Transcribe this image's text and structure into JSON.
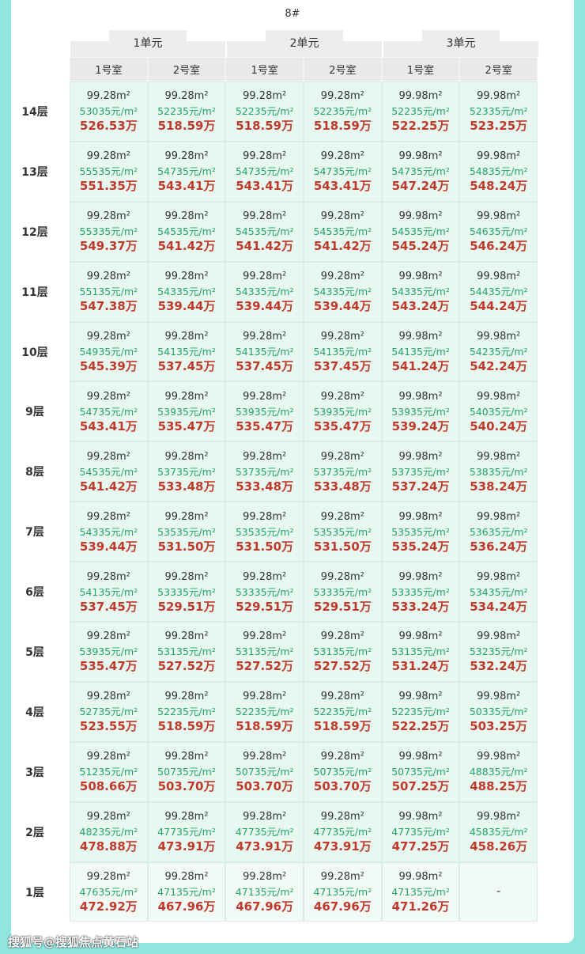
{
  "title": "8#",
  "units": [
    "1单元",
    "2单元",
    "3单元"
  ],
  "rooms": [
    "1号室",
    "2号室",
    "1号室",
    "2号室",
    "1号室",
    "2号室"
  ],
  "colors": {
    "background": "#8fe6df",
    "price": "#23a36a",
    "total": "#c0392b",
    "cell": "#e6f8f0"
  },
  "rows": [
    {
      "floor": "14层",
      "cells": [
        [
          "99.28m²",
          "53035元/m²",
          "526.53万"
        ],
        [
          "99.28m²",
          "52235元/m²",
          "518.59万"
        ],
        [
          "99.28m²",
          "52235元/m²",
          "518.59万"
        ],
        [
          "99.28m²",
          "52235元/m²",
          "518.59万"
        ],
        [
          "99.98m²",
          "52235元/m²",
          "522.25万"
        ],
        [
          "99.98m²",
          "52335元/m²",
          "523.25万"
        ]
      ]
    },
    {
      "floor": "13层",
      "cells": [
        [
          "99.28m²",
          "55535元/m²",
          "551.35万"
        ],
        [
          "99.28m²",
          "54735元/m²",
          "543.41万"
        ],
        [
          "99.28m²",
          "54735元/m²",
          "543.41万"
        ],
        [
          "99.28m²",
          "54735元/m²",
          "543.41万"
        ],
        [
          "99.98m²",
          "54735元/m²",
          "547.24万"
        ],
        [
          "99.98m²",
          "54835元/m²",
          "548.24万"
        ]
      ]
    },
    {
      "floor": "12层",
      "cells": [
        [
          "99.28m²",
          "55335元/m²",
          "549.37万"
        ],
        [
          "99.28m²",
          "54535元/m²",
          "541.42万"
        ],
        [
          "99.28m²",
          "54535元/m²",
          "541.42万"
        ],
        [
          "99.28m²",
          "54535元/m²",
          "541.42万"
        ],
        [
          "99.98m²",
          "54535元/m²",
          "545.24万"
        ],
        [
          "99.98m²",
          "54635元/m²",
          "546.24万"
        ]
      ]
    },
    {
      "floor": "11层",
      "cells": [
        [
          "99.28m²",
          "55135元/m²",
          "547.38万"
        ],
        [
          "99.28m²",
          "54335元/m²",
          "539.44万"
        ],
        [
          "99.28m²",
          "54335元/m²",
          "539.44万"
        ],
        [
          "99.28m²",
          "54335元/m²",
          "539.44万"
        ],
        [
          "99.98m²",
          "54335元/m²",
          "543.24万"
        ],
        [
          "99.98m²",
          "54435元/m²",
          "544.24万"
        ]
      ]
    },
    {
      "floor": "10层",
      "cells": [
        [
          "99.28m²",
          "54935元/m²",
          "545.39万"
        ],
        [
          "99.28m²",
          "54135元/m²",
          "537.45万"
        ],
        [
          "99.28m²",
          "54135元/m²",
          "537.45万"
        ],
        [
          "99.28m²",
          "54135元/m²",
          "537.45万"
        ],
        [
          "99.98m²",
          "54135元/m²",
          "541.24万"
        ],
        [
          "99.98m²",
          "54235元/m²",
          "542.24万"
        ]
      ]
    },
    {
      "floor": "9层",
      "cells": [
        [
          "99.28m²",
          "54735元/m²",
          "543.41万"
        ],
        [
          "99.28m²",
          "53935元/m²",
          "535.47万"
        ],
        [
          "99.28m²",
          "53935元/m²",
          "535.47万"
        ],
        [
          "99.28m²",
          "53935元/m²",
          "535.47万"
        ],
        [
          "99.98m²",
          "53935元/m²",
          "539.24万"
        ],
        [
          "99.98m²",
          "54035元/m²",
          "540.24万"
        ]
      ]
    },
    {
      "floor": "8层",
      "cells": [
        [
          "99.28m²",
          "54535元/m²",
          "541.42万"
        ],
        [
          "99.28m²",
          "53735元/m²",
          "533.48万"
        ],
        [
          "99.28m²",
          "53735元/m²",
          "533.48万"
        ],
        [
          "99.28m²",
          "53735元/m²",
          "533.48万"
        ],
        [
          "99.98m²",
          "53735元/m²",
          "537.24万"
        ],
        [
          "99.98m²",
          "53835元/m²",
          "538.24万"
        ]
      ]
    },
    {
      "floor": "7层",
      "cells": [
        [
          "99.28m²",
          "54335元/m²",
          "539.44万"
        ],
        [
          "99.28m²",
          "53535元/m²",
          "531.50万"
        ],
        [
          "99.28m²",
          "53535元/m²",
          "531.50万"
        ],
        [
          "99.28m²",
          "53535元/m²",
          "531.50万"
        ],
        [
          "99.98m²",
          "53535元/m²",
          "535.24万"
        ],
        [
          "99.98m²",
          "53635元/m²",
          "536.24万"
        ]
      ]
    },
    {
      "floor": "6层",
      "cells": [
        [
          "99.28m²",
          "54135元/m²",
          "537.45万"
        ],
        [
          "99.28m²",
          "53335元/m²",
          "529.51万"
        ],
        [
          "99.28m²",
          "53335元/m²",
          "529.51万"
        ],
        [
          "99.28m²",
          "53335元/m²",
          "529.51万"
        ],
        [
          "99.98m²",
          "53335元/m²",
          "533.24万"
        ],
        [
          "99.98m²",
          "53435元/m²",
          "534.24万"
        ]
      ]
    },
    {
      "floor": "5层",
      "cells": [
        [
          "99.28m²",
          "53935元/m²",
          "535.47万"
        ],
        [
          "99.28m²",
          "53135元/m²",
          "527.52万"
        ],
        [
          "99.28m²",
          "53135元/m²",
          "527.52万"
        ],
        [
          "99.28m²",
          "53135元/m²",
          "527.52万"
        ],
        [
          "99.98m²",
          "53135元/m²",
          "531.24万"
        ],
        [
          "99.98m²",
          "53235元/m²",
          "532.24万"
        ]
      ]
    },
    {
      "floor": "4层",
      "cells": [
        [
          "99.28m²",
          "52735元/m²",
          "523.55万"
        ],
        [
          "99.28m²",
          "52235元/m²",
          "518.59万"
        ],
        [
          "99.28m²",
          "52235元/m²",
          "518.59万"
        ],
        [
          "99.28m²",
          "52235元/m²",
          "518.59万"
        ],
        [
          "99.98m²",
          "52235元/m²",
          "522.25万"
        ],
        [
          "99.98m²",
          "50335元/m²",
          "503.25万"
        ]
      ]
    },
    {
      "floor": "3层",
      "cells": [
        [
          "99.28m²",
          "51235元/m²",
          "508.66万"
        ],
        [
          "99.28m²",
          "50735元/m²",
          "503.70万"
        ],
        [
          "99.28m²",
          "50735元/m²",
          "503.70万"
        ],
        [
          "99.28m²",
          "50735元/m²",
          "503.70万"
        ],
        [
          "99.98m²",
          "50735元/m²",
          "507.25万"
        ],
        [
          "99.98m²",
          "48835元/m²",
          "488.25万"
        ]
      ]
    },
    {
      "floor": "2层",
      "cells": [
        [
          "99.28m²",
          "48235元/m²",
          "478.88万"
        ],
        [
          "99.28m²",
          "47735元/m²",
          "473.91万"
        ],
        [
          "99.28m²",
          "47735元/m²",
          "473.91万"
        ],
        [
          "99.28m²",
          "47735元/m²",
          "473.91万"
        ],
        [
          "99.98m²",
          "47735元/m²",
          "477.25万"
        ],
        [
          "99.98m²",
          "45835元/m²",
          "458.26万"
        ]
      ]
    },
    {
      "floor": "1层",
      "cells": [
        [
          "99.28m²",
          "47635元/m²",
          "472.92万"
        ],
        [
          "99.28m²",
          "47135元/m²",
          "467.96万"
        ],
        [
          "99.28m²",
          "47135元/m²",
          "467.96万"
        ],
        [
          "99.28m²",
          "47135元/m²",
          "467.96万"
        ],
        [
          "99.98m²",
          "47135元/m²",
          "471.26万"
        ],
        [
          "-"
        ]
      ]
    }
  ],
  "watermark": "搜狐号@搜狐焦点黄石站"
}
